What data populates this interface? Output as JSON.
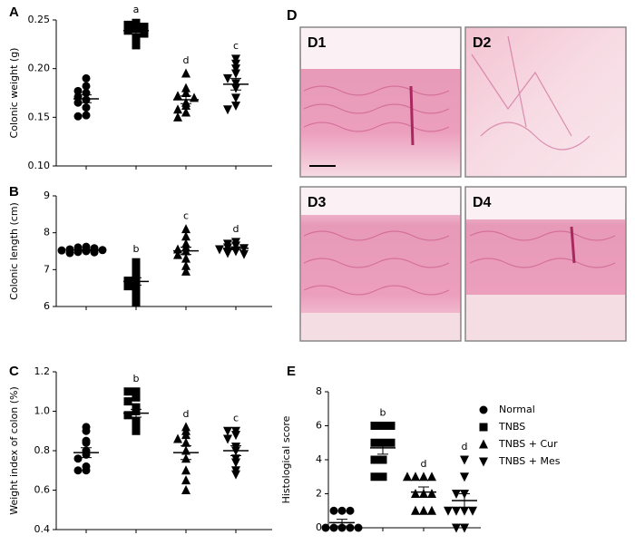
{
  "chart_data": [
    {
      "type": "strip",
      "panel": "A",
      "y_label": "Colonic weight (g)",
      "ylim": [
        0.1,
        0.25
      ],
      "yticks": [
        {
          "value": 0.1,
          "label": "0.10"
        },
        0.15,
        {
          "value": 0.2,
          "label": "0.20"
        },
        0.25
      ],
      "series": [
        {
          "marker": "circle",
          "color": "#000000",
          "values": [
            0.19,
            0.182,
            0.177,
            0.175,
            0.171,
            0.168,
            0.165,
            0.16,
            0.152,
            0.151
          ],
          "mean": 0.169,
          "sem": 0.004
        },
        {
          "marker": "square",
          "color": "#000000",
          "values": [
            0.247,
            0.245,
            0.243,
            0.241,
            0.239,
            0.236,
            0.232,
            0.224
          ],
          "mean": 0.239,
          "sem": 0.003,
          "letter": "a"
        },
        {
          "marker": "triangle-up",
          "color": "#000000",
          "values": [
            0.195,
            0.18,
            0.175,
            0.172,
            0.17,
            0.165,
            0.162,
            0.158,
            0.155,
            0.15
          ],
          "mean": 0.168,
          "sem": 0.004,
          "letter": "d"
        },
        {
          "marker": "triangle-down",
          "color": "#000000",
          "values": [
            0.21,
            0.205,
            0.2,
            0.195,
            0.19,
            0.185,
            0.18,
            0.17,
            0.162,
            0.158
          ],
          "mean": 0.184,
          "sem": 0.006,
          "letter": "c"
        }
      ]
    },
    {
      "type": "strip",
      "panel": "B",
      "y_label": "Colonic length (cm)",
      "ylim": [
        6,
        9
      ],
      "yticks": [
        6,
        7,
        8,
        9
      ],
      "series": [
        {
          "marker": "circle",
          "color": "#000000",
          "values": [
            7.62,
            7.6,
            7.58,
            7.55,
            7.53,
            7.52,
            7.5,
            7.48,
            7.47,
            7.45
          ],
          "mean": 7.53,
          "sem": 0.02
        },
        {
          "marker": "square",
          "color": "#000000",
          "values": [
            7.2,
            7.1,
            6.95,
            6.8,
            6.7,
            6.6,
            6.55,
            6.45,
            6.3,
            6.1
          ],
          "mean": 6.68,
          "sem": 0.1,
          "letter": "b"
        },
        {
          "marker": "triangle-up",
          "color": "#000000",
          "values": [
            8.1,
            7.9,
            7.7,
            7.6,
            7.55,
            7.5,
            7.4,
            7.3,
            7.1,
            6.95
          ],
          "mean": 7.51,
          "sem": 0.1,
          "letter": "c"
        },
        {
          "marker": "triangle-down",
          "color": "#000000",
          "values": [
            7.75,
            7.7,
            7.65,
            7.6,
            7.58,
            7.55,
            7.5,
            7.45,
            7.42
          ],
          "mean": 7.58,
          "sem": 0.04,
          "letter": "d"
        }
      ]
    },
    {
      "type": "strip",
      "panel": "C",
      "y_label": "Weight index of colon (%)",
      "ylim": [
        0.4,
        1.2
      ],
      "yticks": [
        0.4,
        0.6,
        0.8,
        {
          "value": 1,
          "label": "1.0"
        },
        1.2
      ],
      "series": [
        {
          "marker": "circle",
          "color": "#000000",
          "values": [
            0.92,
            0.9,
            0.85,
            0.84,
            0.8,
            0.78,
            0.76,
            0.72,
            0.7,
            0.7
          ],
          "mean": 0.79,
          "sem": 0.025
        },
        {
          "marker": "square",
          "color": "#000000",
          "values": [
            1.1,
            1.1,
            1.07,
            1.05,
            1.02,
            1.0,
            0.98,
            0.95,
            0.92,
            0.9
          ],
          "mean": 0.99,
          "sem": 0.02,
          "letter": "b"
        },
        {
          "marker": "triangle-up",
          "color": "#000000",
          "values": [
            0.92,
            0.9,
            0.88,
            0.86,
            0.84,
            0.8,
            0.76,
            0.7,
            0.65,
            0.6
          ],
          "mean": 0.79,
          "sem": 0.035,
          "letter": "d"
        },
        {
          "marker": "triangle-down",
          "color": "#000000",
          "values": [
            0.9,
            0.9,
            0.88,
            0.86,
            0.82,
            0.8,
            0.76,
            0.74,
            0.7,
            0.68
          ],
          "mean": 0.8,
          "sem": 0.025,
          "letter": "c"
        }
      ]
    },
    {
      "type": "strip",
      "panel": "E",
      "y_label": "Histological score",
      "ylim": [
        0,
        8
      ],
      "yticks": [
        0,
        2,
        4,
        6,
        8
      ],
      "series": [
        {
          "name": "Normal",
          "marker": "circle",
          "color": "#000000",
          "values": [
            1,
            1,
            1,
            0,
            0,
            0,
            0,
            0
          ],
          "mean": 0.3,
          "sem": 0.2
        },
        {
          "name": "TNBS",
          "marker": "square",
          "color": "#000000",
          "values": [
            6,
            6,
            6,
            5,
            5,
            5,
            4,
            4,
            3,
            3
          ],
          "mean": 4.7,
          "sem": 0.37,
          "letter": "b"
        },
        {
          "name": "TNBS + Cur",
          "marker": "triangle-up",
          "color": "#000000",
          "values": [
            3,
            3,
            3,
            3,
            2,
            2,
            2,
            1,
            1,
            1
          ],
          "mean": 2.1,
          "sem": 0.3,
          "letter": "d"
        },
        {
          "name": "TNBS + Mes",
          "marker": "triangle-down",
          "color": "#000000",
          "values": [
            4,
            3,
            2,
            2,
            1,
            1,
            1,
            1,
            0,
            0
          ],
          "mean": 1.6,
          "sem": 0.4,
          "letter": "d"
        }
      ]
    }
  ],
  "panel_d": {
    "label": "D",
    "images": [
      "D1",
      "D2",
      "D3",
      "D4"
    ]
  }
}
